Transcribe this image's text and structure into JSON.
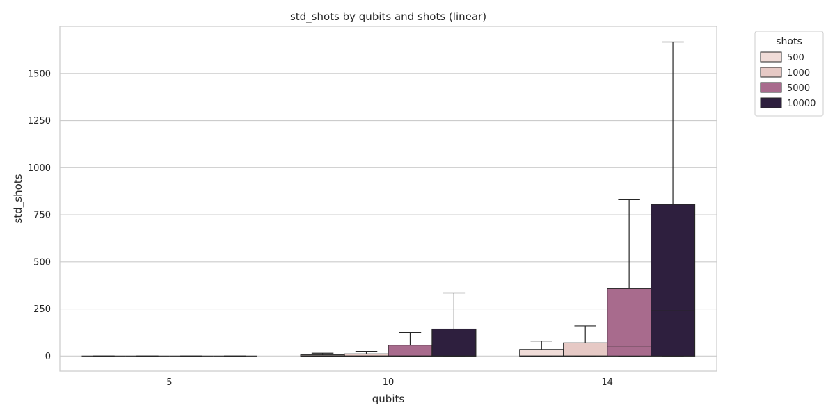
{
  "chart_data": {
    "type": "box",
    "title": "std_shots by qubits and shots (linear)",
    "xlabel": "qubits",
    "ylabel": "std_shots",
    "categories": [
      "5",
      "10",
      "14"
    ],
    "ylim": [
      -80,
      1750
    ],
    "yticks": [
      0,
      250,
      500,
      750,
      1000,
      1250,
      1500
    ],
    "grid": "horizontal",
    "legend": {
      "title": "shots",
      "placement": "upper-right-outside"
    },
    "series": [
      {
        "name": "500",
        "color": "#f0dcd8",
        "boxes": [
          {
            "whislo": 0,
            "q1": 0,
            "med": 0,
            "q3": 0,
            "whishi": 0
          },
          {
            "whislo": 0,
            "q1": 0,
            "med": 0,
            "q3": 6,
            "whishi": 15
          },
          {
            "whislo": 0,
            "q1": 0,
            "med": 0,
            "q3": 35,
            "whishi": 80
          }
        ]
      },
      {
        "name": "1000",
        "color": "#e6c9c5",
        "boxes": [
          {
            "whislo": 0,
            "q1": 0,
            "med": 0,
            "q3": 0,
            "whishi": 0
          },
          {
            "whislo": 0,
            "q1": 0,
            "med": 0,
            "q3": 11,
            "whishi": 25
          },
          {
            "whislo": 0,
            "q1": 0,
            "med": 0,
            "q3": 70,
            "whishi": 160
          }
        ]
      },
      {
        "name": "5000",
        "color": "#a86b8d",
        "boxes": [
          {
            "whislo": 0,
            "q1": 0,
            "med": 0,
            "q3": 0,
            "whishi": 0
          },
          {
            "whislo": 0,
            "q1": 0,
            "med": 0,
            "q3": 58,
            "whishi": 125
          },
          {
            "whislo": 0,
            "q1": 0,
            "med": 48,
            "q3": 358,
            "whishi": 830
          }
        ]
      },
      {
        "name": "10000",
        "color": "#2e1f3e",
        "boxes": [
          {
            "whislo": 0,
            "q1": 0,
            "med": 0,
            "q3": 0,
            "whishi": 0
          },
          {
            "whislo": 0,
            "q1": 0,
            "med": 0,
            "q3": 143,
            "whishi": 335
          },
          {
            "whislo": 0,
            "q1": 0,
            "med": 240,
            "q3": 805,
            "whishi": 1667
          }
        ]
      }
    ]
  }
}
